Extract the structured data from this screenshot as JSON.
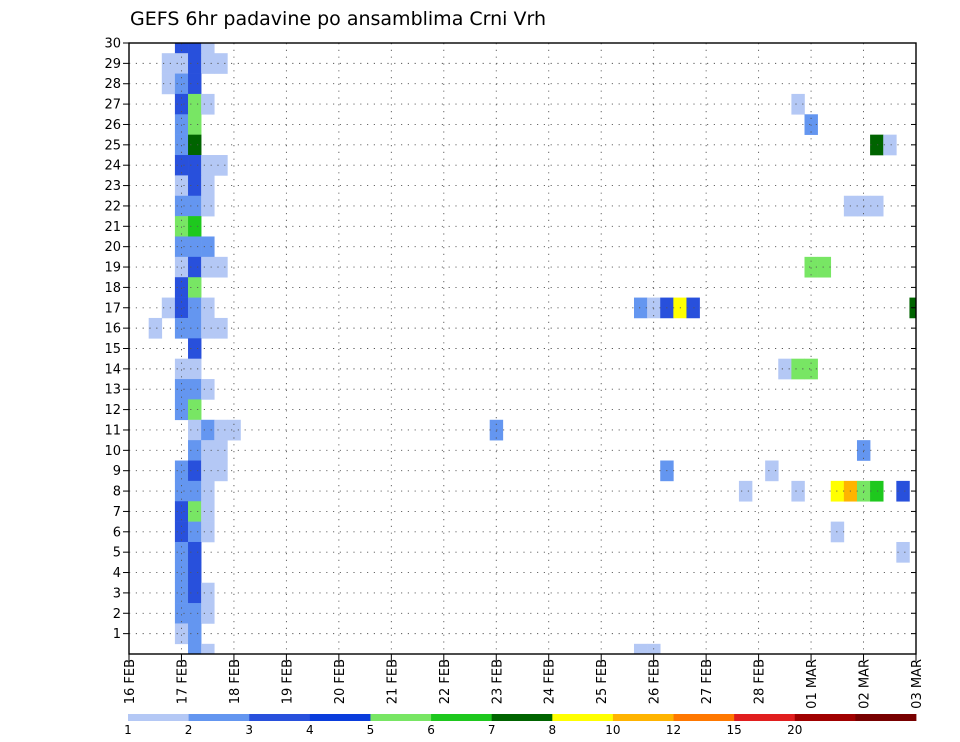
{
  "chart_data": {
    "type": "heatmap",
    "title": "GEFS 6hr padavine po ansamblima Crni Vrh",
    "xlabel": "",
    "ylabel": "",
    "x_ticks": [
      "16 FEB",
      "17 FEB",
      "18 FEB",
      "19 FEB",
      "20 FEB",
      "21 FEB",
      "22 FEB",
      "23 FEB",
      "24 FEB",
      "25 FEB",
      "26 FEB",
      "27 FEB",
      "28 FEB",
      "01 MAR",
      "02 MAR",
      "03 MAR"
    ],
    "xlim_days": [
      16,
      31
    ],
    "y_ticks": [
      1,
      2,
      3,
      4,
      5,
      6,
      7,
      8,
      9,
      10,
      11,
      12,
      13,
      14,
      15,
      16,
      17,
      18,
      19,
      20,
      21,
      22,
      23,
      24,
      25,
      26,
      27,
      28,
      29,
      30
    ],
    "ylim": [
      0,
      30
    ],
    "step_hours": 6,
    "grid": true,
    "legend": {
      "placement": "bottom",
      "labels": [
        "1",
        "2",
        "3",
        "4",
        "5",
        "6",
        "7",
        "8",
        "10",
        "12",
        "15",
        "20"
      ],
      "colors": [
        "#b4c8f5",
        "#6496f0",
        "#2850dc",
        "#0a3cdc",
        "#78e664",
        "#1ec81e",
        "#006400",
        "#ffff00",
        "#ffb400",
        "#ff7800",
        "#e11e1e",
        "#a00000",
        "#780000"
      ]
    },
    "cells": [
      {
        "m": 30,
        "d": 17.0,
        "v": 3
      },
      {
        "m": 30,
        "d": 17.25,
        "v": 3
      },
      {
        "m": 30,
        "d": 17.5,
        "v": 1
      },
      {
        "m": 29,
        "d": 16.75,
        "v": 1
      },
      {
        "m": 29,
        "d": 17.0,
        "v": 1
      },
      {
        "m": 29,
        "d": 17.25,
        "v": 3
      },
      {
        "m": 29,
        "d": 17.5,
        "v": 1
      },
      {
        "m": 29,
        "d": 17.75,
        "v": 1
      },
      {
        "m": 28,
        "d": 16.75,
        "v": 1
      },
      {
        "m": 28,
        "d": 17.0,
        "v": 2
      },
      {
        "m": 28,
        "d": 17.25,
        "v": 3
      },
      {
        "m": 27,
        "d": 17.0,
        "v": 3
      },
      {
        "m": 27,
        "d": 17.25,
        "v": 5
      },
      {
        "m": 27,
        "d": 17.5,
        "v": 1
      },
      {
        "m": 27,
        "d": 28.75,
        "v": 1
      },
      {
        "m": 26,
        "d": 17.0,
        "v": 2
      },
      {
        "m": 26,
        "d": 17.25,
        "v": 5
      },
      {
        "m": 26,
        "d": 29.0,
        "v": 2
      },
      {
        "m": 25,
        "d": 17.0,
        "v": 2
      },
      {
        "m": 25,
        "d": 17.25,
        "v": 7
      },
      {
        "m": 25,
        "d": 30.25,
        "v": 7
      },
      {
        "m": 25,
        "d": 30.5,
        "v": 1
      },
      {
        "m": 24,
        "d": 17.0,
        "v": 3
      },
      {
        "m": 24,
        "d": 17.25,
        "v": 3
      },
      {
        "m": 24,
        "d": 17.5,
        "v": 1
      },
      {
        "m": 24,
        "d": 17.75,
        "v": 1
      },
      {
        "m": 23,
        "d": 17.0,
        "v": 1
      },
      {
        "m": 23,
        "d": 17.25,
        "v": 3
      },
      {
        "m": 23,
        "d": 17.5,
        "v": 1
      },
      {
        "m": 22,
        "d": 17.0,
        "v": 2
      },
      {
        "m": 22,
        "d": 17.25,
        "v": 2
      },
      {
        "m": 22,
        "d": 17.5,
        "v": 1
      },
      {
        "m": 22,
        "d": 29.75,
        "v": 1
      },
      {
        "m": 22,
        "d": 30.0,
        "v": 1
      },
      {
        "m": 22,
        "d": 30.25,
        "v": 1
      },
      {
        "m": 21,
        "d": 17.0,
        "v": 5
      },
      {
        "m": 21,
        "d": 17.25,
        "v": 6
      },
      {
        "m": 20,
        "d": 17.0,
        "v": 2
      },
      {
        "m": 20,
        "d": 17.25,
        "v": 2
      },
      {
        "m": 20,
        "d": 17.5,
        "v": 2
      },
      {
        "m": 19,
        "d": 17.0,
        "v": 1
      },
      {
        "m": 19,
        "d": 17.25,
        "v": 3
      },
      {
        "m": 19,
        "d": 17.5,
        "v": 1
      },
      {
        "m": 19,
        "d": 17.75,
        "v": 1
      },
      {
        "m": 19,
        "d": 29.0,
        "v": 5
      },
      {
        "m": 19,
        "d": 29.25,
        "v": 5
      },
      {
        "m": 18,
        "d": 17.0,
        "v": 3
      },
      {
        "m": 18,
        "d": 17.25,
        "v": 5
      },
      {
        "m": 17,
        "d": 16.75,
        "v": 1
      },
      {
        "m": 17,
        "d": 17.0,
        "v": 3
      },
      {
        "m": 17,
        "d": 17.25,
        "v": 2
      },
      {
        "m": 17,
        "d": 17.5,
        "v": 1
      },
      {
        "m": 17,
        "d": 25.75,
        "v": 2
      },
      {
        "m": 17,
        "d": 26.0,
        "v": 1
      },
      {
        "m": 17,
        "d": 26.25,
        "v": 3
      },
      {
        "m": 17,
        "d": 26.5,
        "v": 8
      },
      {
        "m": 17,
        "d": 26.75,
        "v": 3
      },
      {
        "m": 17,
        "d": 31.0,
        "v": 7
      },
      {
        "m": 16,
        "d": 16.5,
        "v": 1
      },
      {
        "m": 16,
        "d": 17.0,
        "v": 2
      },
      {
        "m": 16,
        "d": 17.25,
        "v": 2
      },
      {
        "m": 16,
        "d": 17.5,
        "v": 1
      },
      {
        "m": 16,
        "d": 17.75,
        "v": 1
      },
      {
        "m": 15,
        "d": 17.25,
        "v": 3
      },
      {
        "m": 14,
        "d": 17.0,
        "v": 1
      },
      {
        "m": 14,
        "d": 17.25,
        "v": 1
      },
      {
        "m": 14,
        "d": 28.5,
        "v": 1
      },
      {
        "m": 14,
        "d": 28.75,
        "v": 5
      },
      {
        "m": 14,
        "d": 29.0,
        "v": 5
      },
      {
        "m": 13,
        "d": 17.0,
        "v": 2
      },
      {
        "m": 13,
        "d": 17.25,
        "v": 2
      },
      {
        "m": 13,
        "d": 17.5,
        "v": 1
      },
      {
        "m": 12,
        "d": 17.0,
        "v": 2
      },
      {
        "m": 12,
        "d": 17.25,
        "v": 5
      },
      {
        "m": 11,
        "d": 17.25,
        "v": 1
      },
      {
        "m": 11,
        "d": 17.5,
        "v": 2
      },
      {
        "m": 11,
        "d": 17.75,
        "v": 1
      },
      {
        "m": 11,
        "d": 18.0,
        "v": 1
      },
      {
        "m": 11,
        "d": 23.0,
        "v": 2
      },
      {
        "m": 10,
        "d": 17.25,
        "v": 2
      },
      {
        "m": 10,
        "d": 17.5,
        "v": 1
      },
      {
        "m": 10,
        "d": 17.75,
        "v": 1
      },
      {
        "m": 10,
        "d": 30.0,
        "v": 2
      },
      {
        "m": 9,
        "d": 17.0,
        "v": 2
      },
      {
        "m": 9,
        "d": 17.25,
        "v": 3
      },
      {
        "m": 9,
        "d": 17.5,
        "v": 1
      },
      {
        "m": 9,
        "d": 17.75,
        "v": 1
      },
      {
        "m": 9,
        "d": 26.25,
        "v": 2
      },
      {
        "m": 9,
        "d": 28.25,
        "v": 1
      },
      {
        "m": 8,
        "d": 17.0,
        "v": 2
      },
      {
        "m": 8,
        "d": 17.25,
        "v": 2
      },
      {
        "m": 8,
        "d": 17.5,
        "v": 1
      },
      {
        "m": 8,
        "d": 27.75,
        "v": 1
      },
      {
        "m": 8,
        "d": 28.75,
        "v": 1
      },
      {
        "m": 8,
        "d": 29.5,
        "v": 8
      },
      {
        "m": 8,
        "d": 29.75,
        "v": 10
      },
      {
        "m": 8,
        "d": 30.0,
        "v": 5
      },
      {
        "m": 8,
        "d": 30.25,
        "v": 6
      },
      {
        "m": 8,
        "d": 30.75,
        "v": 3
      },
      {
        "m": 7,
        "d": 17.0,
        "v": 3
      },
      {
        "m": 7,
        "d": 17.25,
        "v": 5
      },
      {
        "m": 7,
        "d": 17.5,
        "v": 1
      },
      {
        "m": 6,
        "d": 17.0,
        "v": 3
      },
      {
        "m": 6,
        "d": 17.25,
        "v": 2
      },
      {
        "m": 6,
        "d": 17.5,
        "v": 1
      },
      {
        "m": 6,
        "d": 29.5,
        "v": 1
      },
      {
        "m": 5,
        "d": 17.0,
        "v": 2
      },
      {
        "m": 5,
        "d": 17.25,
        "v": 3
      },
      {
        "m": 5,
        "d": 30.75,
        "v": 1
      },
      {
        "m": 4,
        "d": 17.0,
        "v": 2
      },
      {
        "m": 4,
        "d": 17.25,
        "v": 3
      },
      {
        "m": 3,
        "d": 17.0,
        "v": 2
      },
      {
        "m": 3,
        "d": 17.25,
        "v": 3
      },
      {
        "m": 3,
        "d": 17.5,
        "v": 1
      },
      {
        "m": 2,
        "d": 17.0,
        "v": 2
      },
      {
        "m": 2,
        "d": 17.25,
        "v": 2
      },
      {
        "m": 2,
        "d": 17.5,
        "v": 1
      },
      {
        "m": 1,
        "d": 17.0,
        "v": 1
      },
      {
        "m": 1,
        "d": 17.25,
        "v": 2
      },
      {
        "m": 0,
        "d": 17.25,
        "v": 2
      },
      {
        "m": 0,
        "d": 17.5,
        "v": 1
      },
      {
        "m": 0,
        "d": 25.75,
        "v": 1
      },
      {
        "m": 0,
        "d": 26.0,
        "v": 1
      }
    ]
  }
}
